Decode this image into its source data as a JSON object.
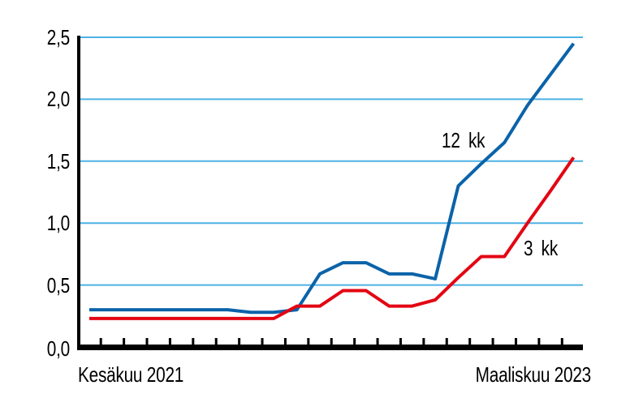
{
  "colors": {
    "grid": "#4db2e4",
    "axis": "#000000",
    "text": "#000000",
    "background": "#ffffff"
  },
  "chart_data": {
    "type": "line",
    "title": "",
    "xlabel": "",
    "ylabel": "",
    "x_first": "Kesäkuu 2021",
    "x_last": "Maaliskuu 2023",
    "x_point_count": 22,
    "x_frequency": "monthly",
    "ylim": [
      0,
      2.5
    ],
    "yticks": [
      0,
      0.5,
      1.0,
      1.5,
      2.0,
      2.5
    ],
    "ytick_labels": [
      "0,0",
      "0,5",
      "1,0",
      "1,5",
      "2,0",
      "2,5"
    ],
    "grid": true,
    "legend_position": "inline-annotations",
    "series": [
      {
        "name": "12 kk",
        "color": "#0b63a9",
        "values": [
          0.3,
          0.3,
          0.3,
          0.3,
          0.3,
          0.3,
          0.3,
          0.28,
          0.28,
          0.3,
          0.59,
          0.68,
          0.68,
          0.59,
          0.59,
          0.55,
          1.3,
          1.48,
          1.65,
          1.95,
          2.2,
          2.45
        ]
      },
      {
        "name": "3 kk",
        "color": "#e30613",
        "values": [
          0.23,
          0.23,
          0.23,
          0.23,
          0.23,
          0.23,
          0.23,
          0.23,
          0.23,
          0.33,
          0.33,
          0.455,
          0.455,
          0.33,
          0.33,
          0.38,
          0.56,
          0.73,
          0.73,
          1.0,
          1.26,
          1.53
        ]
      }
    ]
  }
}
